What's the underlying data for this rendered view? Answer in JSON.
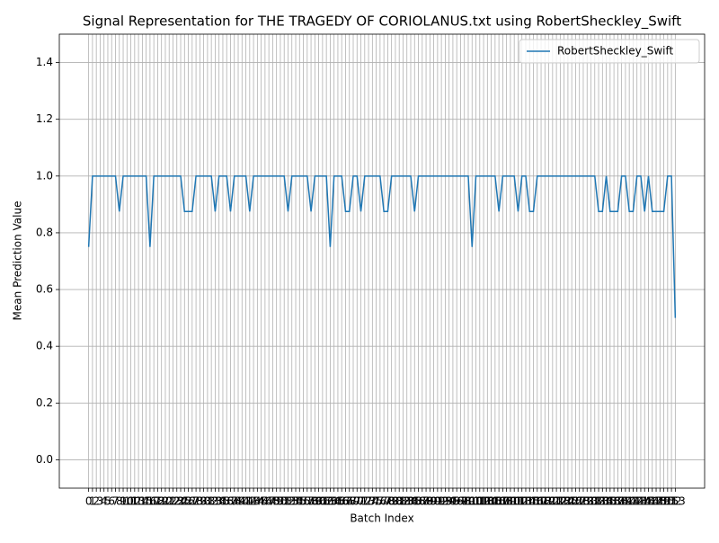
{
  "chart_data": {
    "type": "line",
    "title": "Signal Representation for THE TRAGEDY OF CORIOLANUS.txt using RobertSheckley_Swift",
    "xlabel": "Batch Index",
    "ylabel": "Mean Prediction Value",
    "x": [
      0,
      1,
      2,
      3,
      4,
      5,
      6,
      7,
      8,
      9,
      10,
      11,
      12,
      13,
      14,
      15,
      16,
      17,
      18,
      19,
      20,
      21,
      22,
      23,
      24,
      25,
      26,
      27,
      28,
      29,
      30,
      31,
      32,
      33,
      34,
      35,
      36,
      37,
      38,
      39,
      40,
      41,
      42,
      43,
      44,
      45,
      46,
      47,
      48,
      49,
      50,
      51,
      52,
      53,
      54,
      55,
      56,
      57,
      58,
      59,
      60,
      61,
      62,
      63,
      64,
      65,
      66,
      67,
      68,
      69,
      70,
      71,
      72,
      73,
      74,
      75,
      76,
      77,
      78,
      79,
      80,
      81,
      82,
      83,
      84,
      85,
      86,
      87,
      88,
      89,
      90,
      91,
      92,
      93,
      94,
      95,
      96,
      97,
      98,
      99,
      100,
      101,
      102,
      103,
      104,
      105,
      106,
      107,
      108,
      109,
      110,
      111,
      112,
      113,
      114,
      115,
      116,
      117,
      118,
      119,
      120,
      121,
      122,
      123,
      124,
      125,
      126,
      127,
      128,
      129,
      130,
      131,
      132,
      133,
      134,
      135,
      136,
      137,
      138,
      139,
      140,
      141,
      142,
      143,
      144,
      145,
      146,
      147,
      148,
      149,
      150,
      151,
      152,
      153
    ],
    "series": [
      {
        "name": "RobertSheckley_Swift",
        "color": "#1f77b4",
        "values": [
          0.75,
          1,
          1,
          1,
          1,
          1,
          1,
          1,
          0.875,
          1,
          1,
          1,
          1,
          1,
          1,
          1,
          0.75,
          1,
          1,
          1,
          1,
          1,
          1,
          1,
          1,
          0.875,
          0.875,
          0.875,
          1,
          1,
          1,
          1,
          1,
          0.875,
          1,
          1,
          1,
          0.875,
          1,
          1,
          1,
          1,
          0.875,
          1,
          1,
          1,
          1,
          1,
          1,
          1,
          1,
          1,
          0.875,
          1,
          1,
          1,
          1,
          1,
          0.875,
          1,
          1,
          1,
          1,
          0.75,
          1,
          1,
          1,
          0.875,
          0.875,
          1,
          1,
          0.875,
          1,
          1,
          1,
          1,
          1,
          0.875,
          0.875,
          1,
          1,
          1,
          1,
          1,
          1,
          0.875,
          1,
          1,
          1,
          1,
          1,
          1,
          1,
          1,
          1,
          1,
          1,
          1,
          1,
          1,
          0.75,
          1,
          1,
          1,
          1,
          1,
          1,
          0.875,
          1,
          1,
          1,
          1,
          0.875,
          1,
          1,
          0.875,
          0.875,
          1,
          1,
          1,
          1,
          1,
          1,
          1,
          1,
          1,
          1,
          1,
          1,
          1,
          1,
          1,
          1,
          0.875,
          0.875,
          1,
          0.875,
          0.875,
          0.875,
          1,
          1,
          0.875,
          0.875,
          1,
          1,
          0.875,
          1,
          0.875,
          0.875,
          0.875,
          0.875,
          1,
          1,
          0.5
        ]
      }
    ],
    "xlim": [
      -7.65,
      160.65
    ],
    "xticks": [
      0,
      1,
      2,
      3,
      4,
      5,
      6,
      7,
      8,
      9,
      10,
      11,
      12,
      13,
      14,
      15,
      16,
      17,
      18,
      19,
      20,
      21,
      22,
      23,
      24,
      25,
      26,
      27,
      28,
      29,
      30,
      31,
      32,
      33,
      34,
      35,
      36,
      37,
      38,
      39,
      40,
      41,
      42,
      43,
      44,
      45,
      46,
      47,
      48,
      49,
      50,
      51,
      52,
      53,
      54,
      55,
      56,
      57,
      58,
      59,
      60,
      61,
      62,
      63,
      64,
      65,
      66,
      67,
      68,
      69,
      70,
      71,
      72,
      73,
      74,
      75,
      76,
      77,
      78,
      79,
      80,
      81,
      82,
      83,
      84,
      85,
      86,
      87,
      88,
      89,
      90,
      91,
      92,
      93,
      94,
      95,
      96,
      97,
      98,
      99,
      100,
      101,
      102,
      103,
      104,
      105,
      106,
      107,
      108,
      109,
      110,
      111,
      112,
      113,
      114,
      115,
      116,
      117,
      118,
      119,
      120,
      121,
      122,
      123,
      124,
      125,
      126,
      127,
      128,
      129,
      130,
      131,
      132,
      133,
      134,
      135,
      136,
      137,
      138,
      139,
      140,
      141,
      142,
      143,
      144,
      145,
      146,
      147,
      148,
      149,
      150,
      151,
      152,
      153
    ],
    "ylim": [
      -0.1,
      1.5
    ],
    "yticks": [
      {
        "value": 0,
        "label": "0.0"
      },
      0.2,
      0.4,
      0.6,
      0.8,
      {
        "value": 1,
        "label": "1.0"
      },
      1.2,
      1.4
    ],
    "grid": true,
    "legend": "upper right"
  }
}
